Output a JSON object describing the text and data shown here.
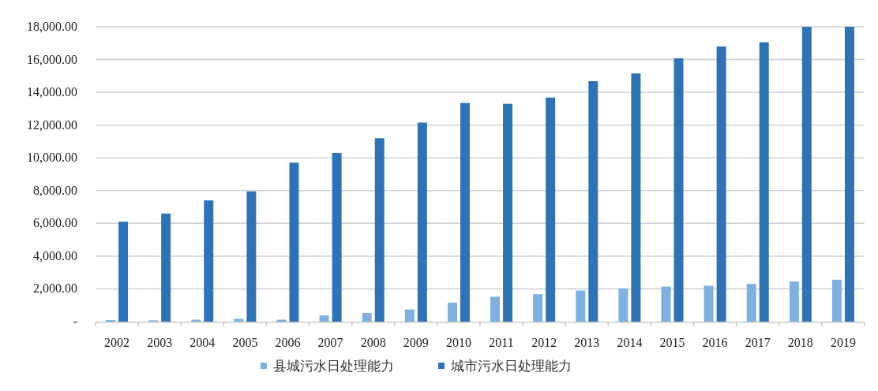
{
  "chart_data": {
    "type": "bar",
    "categories": [
      "2002",
      "2003",
      "2004",
      "2005",
      "2006",
      "2007",
      "2008",
      "2009",
      "2010",
      "2011",
      "2012",
      "2013",
      "2014",
      "2015",
      "2016",
      "2017",
      "2018",
      "2019"
    ],
    "series": [
      {
        "name": "县城污水日处理能力",
        "color": "#7fb0e0",
        "values": [
          90,
          80,
          120,
          170,
          120,
          380,
          530,
          740,
          1160,
          1520,
          1680,
          1900,
          2020,
          2140,
          2190,
          2300,
          2450,
          2560
        ]
      },
      {
        "name": "城市污水日处理能力",
        "color": "#2e74b5",
        "values": [
          6100,
          6600,
          7400,
          7950,
          9700,
          10300,
          11200,
          12150,
          13350,
          13300,
          13680,
          14680,
          15150,
          16080,
          16800,
          17060,
          18000,
          18000
        ]
      }
    ],
    "ylim": [
      0,
      18000
    ],
    "yticks": [
      {
        "value": 0,
        "label": "-"
      },
      {
        "value": 2000,
        "label": "2,000.00"
      },
      {
        "value": 4000,
        "label": "4,000.00"
      },
      {
        "value": 6000,
        "label": "6,000.00"
      },
      {
        "value": 8000,
        "label": "8,000.00"
      },
      {
        "value": 10000,
        "label": "10,000.00"
      },
      {
        "value": 12000,
        "label": "12,000.00"
      },
      {
        "value": 14000,
        "label": "14,000.00"
      },
      {
        "value": 16000,
        "label": "16,000.00"
      },
      {
        "value": 18000,
        "label": "18,000.00"
      }
    ],
    "grid": "y",
    "legend": "bottom"
  }
}
